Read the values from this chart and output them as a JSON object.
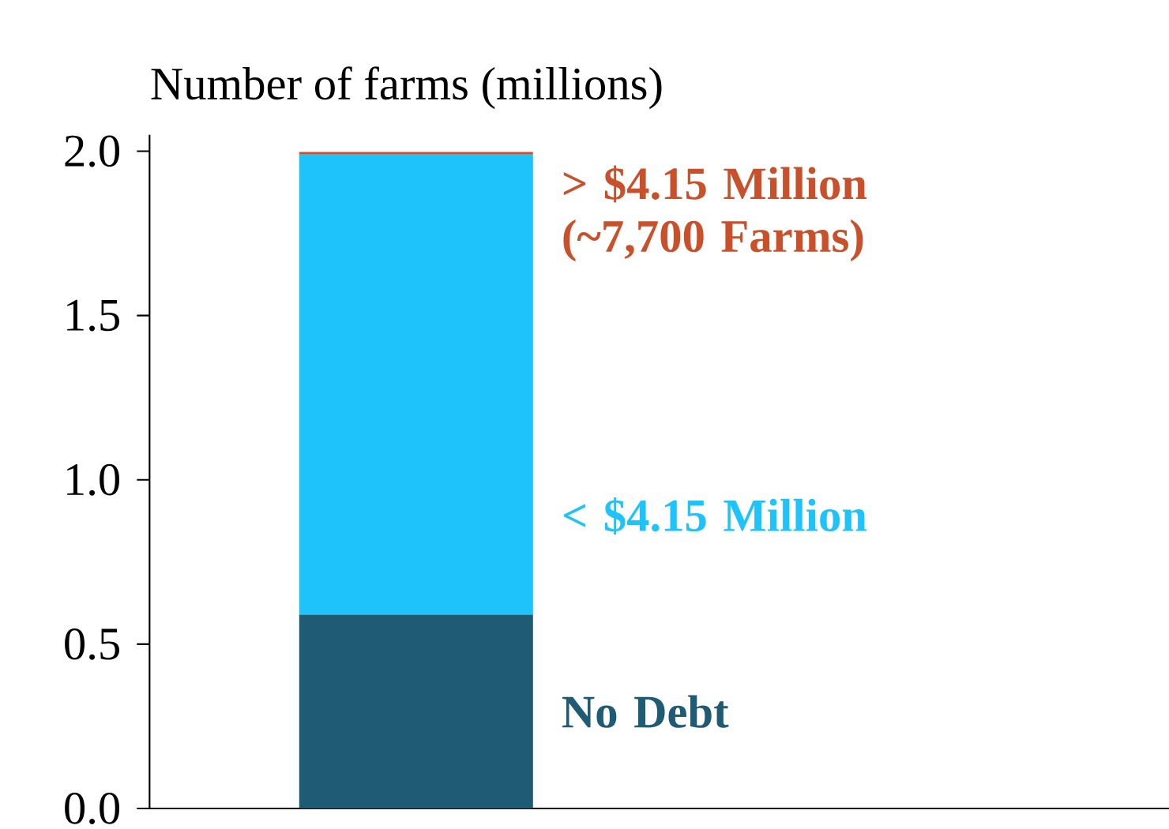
{
  "chart_data": {
    "type": "bar",
    "stacked": true,
    "ylabel": "Number of farms (millions)",
    "categories": [
      null
    ],
    "series": [
      {
        "name": "No Debt",
        "color": "#1f5b74",
        "values": [
          0.59
        ]
      },
      {
        "name": "< $4.15 Million",
        "color": "#1ec3fb",
        "values": [
          1.4
        ]
      },
      {
        "name": "> $4.15 Million (~7,700 Farms)",
        "color": "#c8502a",
        "values": [
          0.0077
        ]
      }
    ],
    "ylim": [
      0,
      2.05
    ],
    "yticks": [
      {
        "value": 0,
        "label": "0.0"
      },
      {
        "value": 0.5,
        "label": "0.5"
      },
      {
        "value": 1,
        "label": "1.0"
      },
      {
        "value": 1.5,
        "label": "1.5"
      },
      {
        "value": 2,
        "label": "2.0"
      }
    ],
    "grid": false
  }
}
